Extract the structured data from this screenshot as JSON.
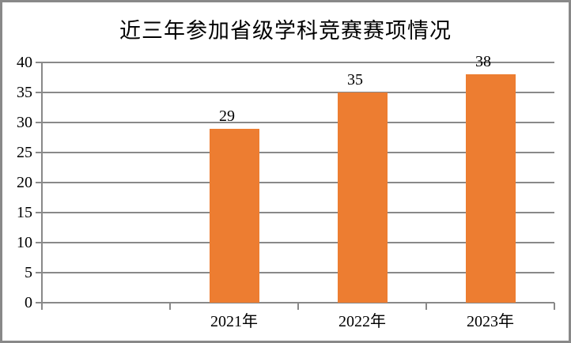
{
  "window": {
    "background_color": "#FFFFFF",
    "border_color": "#898989"
  },
  "chart_data": {
    "type": "bar",
    "title": "近三年参加省级学科竞赛赛项情况",
    "categories": [
      "2021年",
      "2022年",
      "2023年"
    ],
    "values": [
      29,
      35,
      38
    ],
    "data_labels": [
      "29",
      "35",
      "38"
    ],
    "xlabel": "",
    "ylabel": "",
    "ylim": [
      0,
      40
    ],
    "ytick_step": 5,
    "yticks": [
      0,
      5,
      10,
      15,
      20,
      25,
      30,
      35,
      40
    ],
    "grid": "horizontal",
    "legend": "none",
    "leading_empty_category_slot": true,
    "bar_color": "#ED7D31",
    "gridline_color": "#898989",
    "axis_color": "#898989",
    "text_color": "#000000"
  }
}
